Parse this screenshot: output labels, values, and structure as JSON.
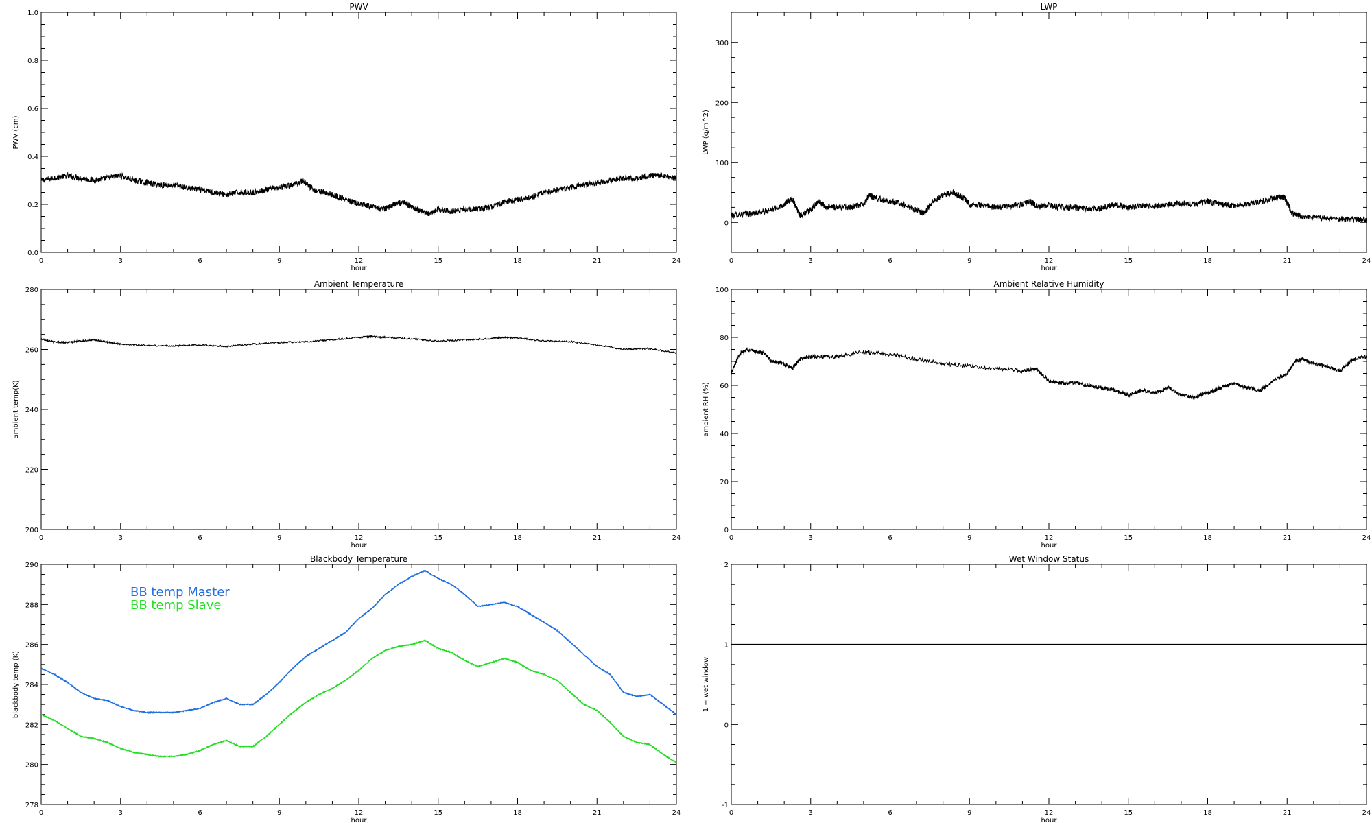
{
  "chart_data": [
    {
      "type": "line",
      "title": "PWV",
      "xlabel": "hour",
      "ylabel": "PWV (cm)",
      "xlim": [
        0,
        24
      ],
      "ylim": [
        0,
        1
      ],
      "xticks": [
        "0",
        "3",
        "6",
        "9",
        "12",
        "15",
        "18",
        "21",
        "24"
      ],
      "yticks": [
        "0.0",
        "0.2",
        "0.4",
        "0.6",
        "0.8",
        "1.0"
      ],
      "noise": 0.012,
      "series": [
        {
          "color": "#000000",
          "x": [
            0,
            0.5,
            1,
            1.5,
            2,
            2.5,
            3,
            3.5,
            4,
            4.5,
            5,
            5.5,
            6,
            6.5,
            7,
            7.5,
            8,
            8.5,
            9,
            9.5,
            9.9,
            10.3,
            10.7,
            11,
            11.5,
            12,
            12.5,
            13,
            13.3,
            13.7,
            14,
            14.3,
            14.7,
            15,
            15.5,
            16,
            16.5,
            17,
            17.5,
            18,
            18.5,
            19,
            19.5,
            20,
            20.5,
            21,
            21.5,
            22,
            22.5,
            23,
            23.5,
            24
          ],
          "y": [
            0.3,
            0.31,
            0.32,
            0.31,
            0.3,
            0.31,
            0.32,
            0.3,
            0.29,
            0.28,
            0.28,
            0.27,
            0.26,
            0.25,
            0.24,
            0.25,
            0.25,
            0.26,
            0.27,
            0.28,
            0.3,
            0.26,
            0.25,
            0.24,
            0.22,
            0.2,
            0.19,
            0.18,
            0.2,
            0.21,
            0.19,
            0.17,
            0.16,
            0.18,
            0.17,
            0.18,
            0.18,
            0.19,
            0.21,
            0.22,
            0.23,
            0.25,
            0.26,
            0.27,
            0.28,
            0.29,
            0.3,
            0.31,
            0.31,
            0.32,
            0.32,
            0.31
          ]
        }
      ]
    },
    {
      "type": "line",
      "title": "LWP",
      "xlabel": "hour",
      "ylabel": "LWP (g/m^2)",
      "xlim": [
        0,
        24
      ],
      "ylim": [
        -50,
        350
      ],
      "xticks": [
        "0",
        "3",
        "6",
        "9",
        "12",
        "15",
        "18",
        "21",
        "24"
      ],
      "yticks": [
        "0",
        "100",
        "200",
        "300"
      ],
      "noise": 5,
      "series": [
        {
          "color": "#000000",
          "x": [
            0,
            0.5,
            1,
            1.5,
            2,
            2.3,
            2.6,
            3,
            3.3,
            3.6,
            4,
            4.5,
            5,
            5.2,
            5.5,
            6,
            6.5,
            7,
            7.3,
            7.6,
            8,
            8.4,
            8.8,
            9,
            9.5,
            10,
            10.5,
            11,
            11.3,
            11.6,
            12,
            12.5,
            13,
            13.5,
            14,
            14.5,
            15,
            15.5,
            16,
            16.5,
            17,
            17.5,
            18,
            18.5,
            19,
            19.5,
            20,
            20.5,
            20.9,
            21.2,
            21.5,
            22,
            22.5,
            23,
            23.5,
            24
          ],
          "y": [
            12,
            14,
            16,
            20,
            30,
            40,
            12,
            20,
            35,
            25,
            26,
            25,
            30,
            45,
            40,
            35,
            30,
            20,
            15,
            35,
            45,
            50,
            40,
            30,
            28,
            25,
            27,
            30,
            35,
            25,
            28,
            25,
            25,
            22,
            24,
            30,
            25,
            28,
            27,
            30,
            32,
            30,
            35,
            30,
            28,
            30,
            35,
            40,
            42,
            15,
            10,
            8,
            6,
            5,
            5,
            4
          ]
        }
      ]
    },
    {
      "type": "line",
      "title": "Ambient Temperature",
      "xlabel": "hour",
      "ylabel": "ambient temp(K)",
      "xlim": [
        0,
        24
      ],
      "ylim": [
        200,
        280
      ],
      "xticks": [
        "0",
        "3",
        "6",
        "9",
        "12",
        "15",
        "18",
        "21",
        "24"
      ],
      "yticks": [
        "200",
        "220",
        "240",
        "260",
        "280"
      ],
      "noise": 0.25,
      "series": [
        {
          "color": "#000000",
          "x": [
            0,
            0.5,
            1,
            1.5,
            2,
            2.5,
            3,
            4,
            5,
            6,
            7,
            8,
            9,
            10,
            11,
            12,
            12.5,
            13,
            14,
            15,
            16,
            17,
            17.5,
            18,
            19,
            20,
            21,
            22,
            23,
            24
          ],
          "y": [
            263.5,
            262.5,
            262.3,
            262.8,
            263.2,
            262.4,
            261.8,
            261.3,
            261.2,
            261.5,
            261.0,
            261.8,
            262.3,
            262.6,
            263.2,
            264.0,
            264.3,
            264.0,
            263.5,
            262.8,
            263.2,
            263.6,
            264.0,
            263.8,
            262.8,
            262.6,
            261.5,
            260.0,
            260.3,
            258.8
          ]
        }
      ]
    },
    {
      "type": "line",
      "title": "Ambient Relative Humidity",
      "xlabel": "hour",
      "ylabel": "ambient RH (%)",
      "xlim": [
        0,
        24
      ],
      "ylim": [
        0,
        100
      ],
      "xticks": [
        "0",
        "3",
        "6",
        "9",
        "12",
        "15",
        "18",
        "21",
        "24"
      ],
      "yticks": [
        "0",
        "20",
        "40",
        "60",
        "80",
        "100"
      ],
      "noise": 0.8,
      "series": [
        {
          "color": "#000000",
          "x": [
            0,
            0.3,
            0.6,
            1,
            1.3,
            1.5,
            2,
            2.3,
            2.6,
            3,
            3.5,
            4,
            5,
            6,
            7,
            8,
            9,
            10,
            11,
            11.5,
            12,
            12.5,
            13,
            13.5,
            14,
            14.5,
            15,
            15.5,
            16,
            16.5,
            17,
            17.5,
            18,
            18.5,
            19,
            19.5,
            20,
            20.5,
            21,
            21.3,
            21.6,
            22,
            22.5,
            23,
            23.5,
            24
          ],
          "y": [
            65,
            73,
            75,
            74,
            73,
            70,
            69,
            67,
            71,
            72,
            72,
            72,
            74,
            73,
            71,
            69,
            68,
            67,
            66,
            67,
            62,
            61,
            61,
            60,
            59,
            58,
            56,
            58,
            57,
            59,
            56,
            55,
            57,
            59,
            61,
            59,
            58,
            62,
            65,
            70,
            71,
            69,
            68,
            66,
            71,
            72
          ]
        }
      ]
    },
    {
      "type": "line",
      "title": "Blackbody Temperature",
      "xlabel": "hour",
      "ylabel": "blackbody temp (K)",
      "xlim": [
        0,
        24
      ],
      "ylim": [
        278,
        290
      ],
      "xticks": [
        "0",
        "3",
        "6",
        "9",
        "12",
        "15",
        "18",
        "21",
        "24"
      ],
      "yticks": [
        "278",
        "280",
        "282",
        "284",
        "286",
        "288",
        "290"
      ],
      "noise": 0.02,
      "legend": "top-left",
      "series": [
        {
          "name": "BB temp Master",
          "color": "#1f6fe0",
          "x": [
            0,
            0.5,
            1,
            1.5,
            2,
            2.5,
            3,
            3.5,
            4,
            4.5,
            5,
            5.5,
            6,
            6.5,
            7,
            7.5,
            8,
            8.5,
            9,
            9.5,
            10,
            10.5,
            11,
            11.5,
            12,
            12.5,
            13,
            13.5,
            14,
            14.5,
            15,
            15.5,
            16,
            16.5,
            17,
            17.5,
            18,
            18.5,
            19,
            19.5,
            20,
            20.5,
            21,
            21.5,
            22,
            22.5,
            23,
            23.5,
            24
          ],
          "y": [
            284.8,
            284.5,
            284.1,
            283.6,
            283.3,
            283.2,
            282.9,
            282.7,
            282.6,
            282.6,
            282.6,
            282.7,
            282.8,
            283.1,
            283.3,
            283.0,
            283.0,
            283.5,
            284.1,
            284.8,
            285.4,
            285.8,
            286.2,
            286.6,
            287.3,
            287.8,
            288.5,
            289.0,
            289.4,
            289.7,
            289.3,
            289.0,
            288.5,
            287.9,
            288.0,
            288.1,
            287.9,
            287.5,
            287.1,
            286.7,
            286.1,
            285.5,
            284.9,
            284.5,
            283.6,
            283.4,
            283.5,
            283.0,
            282.5
          ]
        },
        {
          "name": "BB temp Slave",
          "color": "#22dd22",
          "x": [
            0,
            0.5,
            1,
            1.5,
            2,
            2.5,
            3,
            3.5,
            4,
            4.5,
            5,
            5.5,
            6,
            6.5,
            7,
            7.5,
            8,
            8.5,
            9,
            9.5,
            10,
            10.5,
            11,
            11.5,
            12,
            12.5,
            13,
            13.5,
            14,
            14.5,
            15,
            15.5,
            16,
            16.5,
            17,
            17.5,
            18,
            18.5,
            19,
            19.5,
            20,
            20.5,
            21,
            21.5,
            22,
            22.5,
            23,
            23.5,
            24
          ],
          "y": [
            282.5,
            282.2,
            281.8,
            281.4,
            281.3,
            281.1,
            280.8,
            280.6,
            280.5,
            280.4,
            280.4,
            280.5,
            280.7,
            281.0,
            281.2,
            280.9,
            280.9,
            281.4,
            282.0,
            282.6,
            283.1,
            283.5,
            283.8,
            284.2,
            284.7,
            285.3,
            285.7,
            285.9,
            286.0,
            286.2,
            285.8,
            285.6,
            285.2,
            284.9,
            285.1,
            285.3,
            285.1,
            284.7,
            284.5,
            284.2,
            283.6,
            283.0,
            282.7,
            282.1,
            281.4,
            281.1,
            281.0,
            280.5,
            280.1
          ]
        }
      ]
    },
    {
      "type": "line",
      "title": "Wet Window Status",
      "xlabel": "hour",
      "ylabel": "1 = wet window",
      "xlim": [
        0,
        24
      ],
      "ylim": [
        -1,
        2
      ],
      "xticks": [
        "0",
        "3",
        "6",
        "9",
        "12",
        "15",
        "18",
        "21",
        "24"
      ],
      "yticks": [
        "-1",
        "0",
        "1",
        "2"
      ],
      "noise": 0,
      "series": [
        {
          "color": "#000000",
          "x": [
            0,
            24
          ],
          "y": [
            1,
            1
          ]
        }
      ]
    }
  ]
}
